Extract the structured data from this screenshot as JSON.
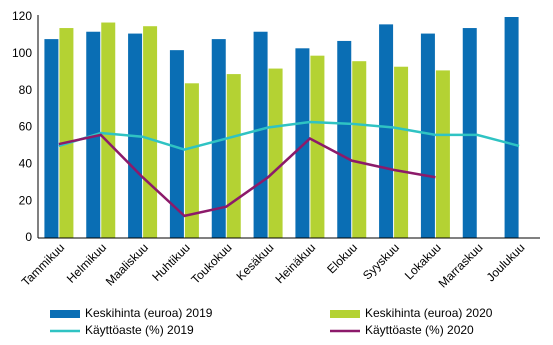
{
  "chart_data": {
    "type": "bar",
    "categories": [
      "Tammikuu",
      "Helmikuu",
      "Maaliskuu",
      "Huhtikuu",
      "Toukokuu",
      "Kesäkuu",
      "Heinäkuu",
      "Elokuu",
      "Syyskuu",
      "Lokakuu",
      "Marraskuu",
      "Joulukuu"
    ],
    "series": [
      {
        "name": "Keskihinta (euroa) 2019",
        "type": "bar",
        "color": "#0a6eb4",
        "values": [
          108,
          112,
          111,
          102,
          108,
          112,
          103,
          107,
          116,
          111,
          114,
          120
        ]
      },
      {
        "name": "Keskihinta (euroa) 2020",
        "type": "bar",
        "color": "#b4d233",
        "values": [
          114,
          117,
          115,
          84,
          89,
          92,
          99,
          96,
          93,
          91,
          null,
          null
        ]
      },
      {
        "name": "Käyttöaste (%) 2019",
        "type": "line",
        "color": "#2fc3c3",
        "values": [
          50,
          57,
          55,
          48,
          54,
          60,
          63,
          62,
          60,
          56,
          56,
          50
        ]
      },
      {
        "name": "Käyttöaste (%) 2020",
        "type": "line",
        "color": "#8c1a6a",
        "values": [
          51,
          56,
          33,
          12,
          17,
          33,
          54,
          42,
          37,
          33,
          null,
          null
        ]
      }
    ],
    "ylim": [
      0,
      120
    ],
    "yticks": [
      0,
      20,
      40,
      60,
      80,
      100,
      120
    ],
    "grid": false
  }
}
